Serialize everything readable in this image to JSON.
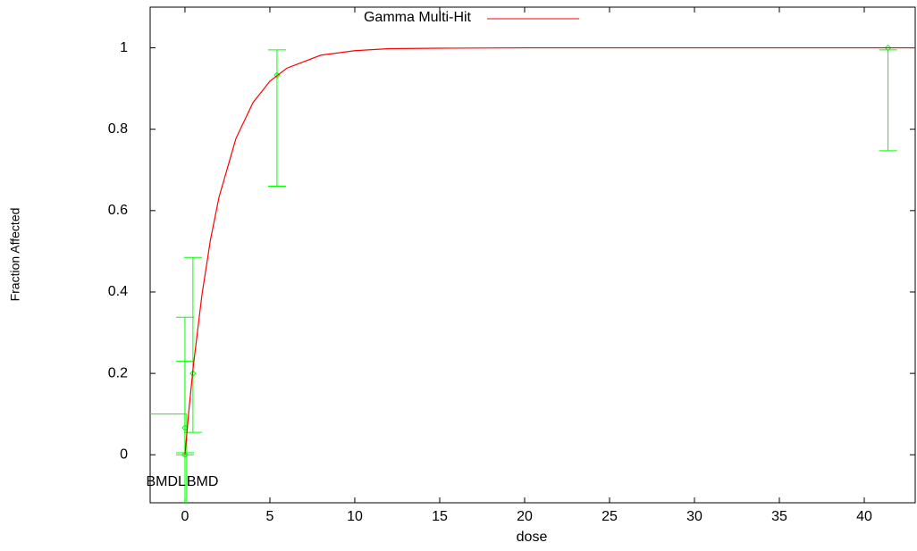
{
  "chart_data": {
    "type": "line",
    "xlabel": "dose",
    "ylabel": "Fraction Affected",
    "xlim": [
      -2.05,
      43
    ],
    "ylim": [
      -0.118,
      1.1
    ],
    "xticks": [
      0,
      5,
      10,
      15,
      20,
      25,
      30,
      35,
      40
    ],
    "yticks": [
      0,
      0.2,
      0.4,
      0.6,
      0.8,
      1
    ],
    "series": [
      {
        "name": "Gamma Multi-Hit",
        "color": "#ff0000",
        "x": [
          0,
          0.25,
          0.5,
          1,
          1.5,
          2,
          3,
          4,
          5,
          6,
          8,
          10,
          12,
          15,
          20,
          30,
          43
        ],
        "values": [
          0,
          0.118,
          0.221,
          0.393,
          0.528,
          0.632,
          0.777,
          0.865,
          0.918,
          0.95,
          0.982,
          0.993,
          0.998,
          0.999,
          1,
          1,
          1
        ]
      }
    ],
    "observed": {
      "color": "#00ff00",
      "x": [
        0,
        0,
        0.47,
        5.42,
        41.4
      ],
      "values": [
        0,
        0.066,
        0.2,
        0.933,
        1
      ],
      "lower": [
        0,
        0.005,
        0.055,
        0.66,
        0.747
      ],
      "upper": [
        0.23,
        0.338,
        0.485,
        0.995,
        0.995
      ]
    },
    "bmd": {
      "bmr": 0.1,
      "bmdl": 0,
      "bmd": 0.1,
      "bmdl_label": "BMDL",
      "bmd_label": "BMD"
    }
  }
}
